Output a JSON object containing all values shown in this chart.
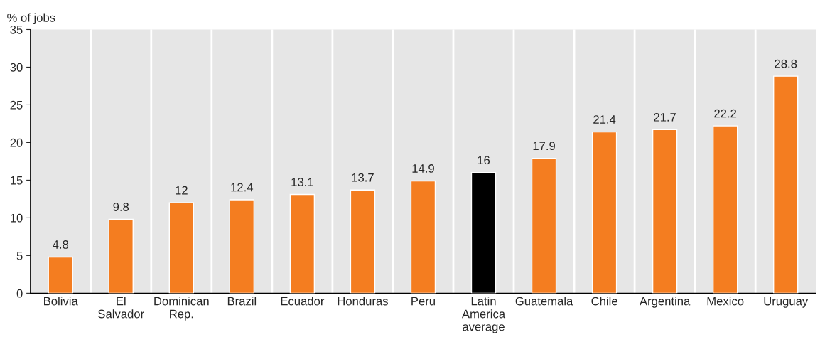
{
  "chart_data": {
    "type": "bar",
    "ylabel": "% of jobs",
    "categories": [
      "Bolivia",
      "El\nSalvador",
      "Dominican\nRep.",
      "Brazil",
      "Ecuador",
      "Honduras",
      "Peru",
      "Latin\nAmerica\naverage",
      "Guatemala",
      "Chile",
      "Argentina",
      "Mexico",
      "Uruguay"
    ],
    "values": [
      4.8,
      9.8,
      12,
      12.4,
      13.1,
      13.7,
      14.9,
      16,
      17.9,
      21.4,
      21.7,
      22.2,
      28.8
    ],
    "colors": [
      "#f47d20",
      "#f47d20",
      "#f47d20",
      "#f47d20",
      "#f47d20",
      "#f47d20",
      "#f47d20",
      "#000000",
      "#f47d20",
      "#f47d20",
      "#f47d20",
      "#f47d20",
      "#f47d20"
    ],
    "ylim": [
      0,
      35
    ],
    "yticks": [
      0,
      5,
      10,
      15,
      20,
      25,
      30,
      35
    ],
    "grid": "x",
    "data_labels": true
  }
}
